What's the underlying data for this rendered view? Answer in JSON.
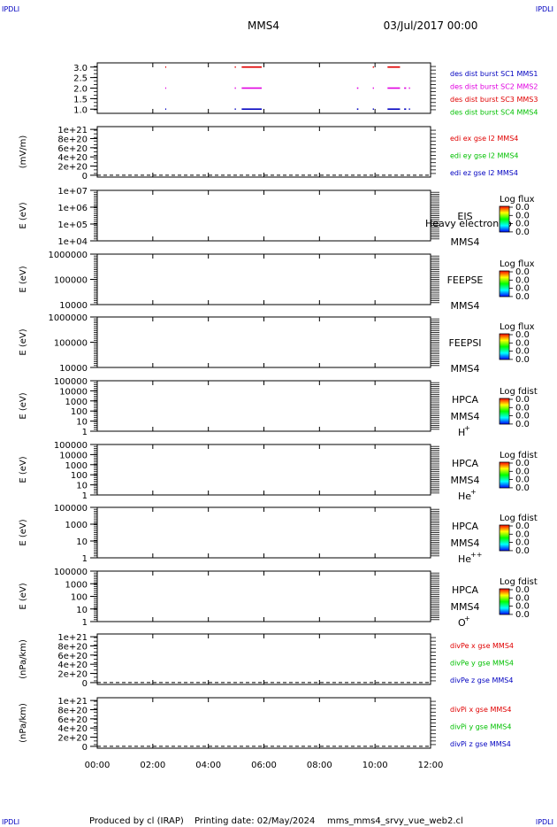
{
  "header": {
    "corner_tl": "IPDLI",
    "corner_tr": "IPDLI",
    "corner_bl": "IPDLI",
    "corner_br": "IPDLI",
    "title": "MMS4",
    "date": "03/Jul/2017 00:00"
  },
  "footer": {
    "produced": "Produced by cl (IRAP)",
    "printed": "Printing date: 02/May/2024",
    "file": "mms_mms4_srvy_vue_web2.cl"
  },
  "colors": {
    "red": "#e00000",
    "magenta": "#e000e0",
    "blue": "#0000c0",
    "green": "#00c000"
  },
  "chart_data": {
    "type": "line",
    "x_axis": {
      "range": [
        "00:00",
        "12:00"
      ],
      "tick_labels": [
        "00:00",
        "02:00",
        "04:00",
        "06:00",
        "08:00",
        "10:00",
        "12:00"
      ]
    },
    "panels": [
      {
        "id": "burst",
        "ylabel": "",
        "tick_labels": [
          "3.0",
          "2.5",
          "2.0",
          "1.5",
          "1.0"
        ],
        "ylim": [
          0.8,
          3.2
        ],
        "legend": [
          {
            "text": "des dist burst SC1 MMS1",
            "color": "#0000c0"
          },
          {
            "text": "des dist burst SC2 MMS2",
            "color": "#e000e0"
          },
          {
            "text": "des dist burst SC3 MMS3",
            "color": "#e00000"
          },
          {
            "text": "des dist burst SC4 MMS4",
            "color": "#00c000"
          }
        ],
        "series": [
          {
            "level": 3,
            "color": "#e00000",
            "intervals": [
              [
                2.45,
                2.47
              ],
              [
                4.95,
                4.99
              ],
              [
                5.2,
                5.92
              ],
              [
                9.92,
                9.96
              ],
              [
                10.45,
                10.9
              ]
            ]
          },
          {
            "level": 2,
            "color": "#e000e0",
            "intervals": [
              [
                2.45,
                2.47
              ],
              [
                4.95,
                4.99
              ],
              [
                5.2,
                5.92
              ],
              [
                9.35,
                9.4
              ],
              [
                9.92,
                9.96
              ],
              [
                10.45,
                10.9
              ],
              [
                11.05,
                11.12
              ],
              [
                11.22,
                11.26
              ]
            ]
          },
          {
            "level": 1,
            "color": "#0000c0",
            "intervals": [
              [
                2.45,
                2.47
              ],
              [
                4.95,
                4.99
              ],
              [
                5.2,
                5.92
              ],
              [
                9.35,
                9.4
              ],
              [
                9.92,
                9.96
              ],
              [
                10.45,
                10.9
              ],
              [
                11.05,
                11.12
              ],
              [
                11.22,
                11.26
              ]
            ]
          }
        ]
      },
      {
        "id": "edi",
        "ylabel": "(mV/m)",
        "tick_labels": [
          "1e+21",
          "8e+20",
          "6e+20",
          "4e+20",
          "2e+20",
          "0"
        ],
        "ylim": [
          -4e+19,
          1.06e+21
        ],
        "zero_line": true,
        "legend": [
          {
            "text": "edi ex gse l2 MMS4",
            "color": "#e00000"
          },
          {
            "text": "edi ey gse l2 MMS4",
            "color": "#00c000"
          },
          {
            "text": "edi ez gse l2 MMS4",
            "color": "#0000c0"
          }
        ]
      },
      {
        "id": "eis",
        "ylabel": "E (eV)",
        "tick_labels": [
          "1e+07",
          "1e+06",
          "1e+05",
          "1e+04"
        ],
        "log": true,
        "instrument": [
          "EIS",
          "MMS4"
        ],
        "overlay": "Heavy electron to",
        "colorbar": {
          "title": "Log flux",
          "ticks": [
            "0.0",
            "0.0",
            "0.0",
            "0.0"
          ]
        }
      },
      {
        "id": "feepse",
        "ylabel": "E (eV)",
        "tick_labels": [
          "1000000",
          "100000",
          "10000"
        ],
        "log": true,
        "instrument": [
          "FEEPSE",
          "MMS4"
        ],
        "colorbar": {
          "title": "Log flux",
          "ticks": [
            "0.0",
            "0.0",
            "0.0",
            "0.0"
          ]
        }
      },
      {
        "id": "feepsi",
        "ylabel": "E (eV)",
        "tick_labels": [
          "1000000",
          "100000",
          "10000"
        ],
        "log": true,
        "instrument": [
          "FEEPSI",
          "MMS4"
        ],
        "colorbar": {
          "title": "Log flux",
          "ticks": [
            "0.0",
            "0.0",
            "0.0",
            "0.0"
          ]
        }
      },
      {
        "id": "hpca_h",
        "ylabel": "E (eV)",
        "tick_labels": [
          "100000",
          "10000",
          "1000",
          "100",
          "10",
          "1"
        ],
        "log": true,
        "instrument": [
          "HPCA",
          "MMS4"
        ],
        "species": {
          "base": "H",
          "sup": "+"
        },
        "colorbar": {
          "title": "Log fdist",
          "ticks": [
            "0.0",
            "0.0",
            "0.0",
            "0.0"
          ]
        }
      },
      {
        "id": "hpca_he",
        "ylabel": "E (eV)",
        "tick_labels": [
          "100000",
          "10000",
          "1000",
          "100",
          "10",
          "1"
        ],
        "log": true,
        "instrument": [
          "HPCA",
          "MMS4"
        ],
        "species": {
          "base": "He",
          "sup": "+"
        },
        "colorbar": {
          "title": "Log fdist",
          "ticks": [
            "0.0",
            "0.0",
            "0.0",
            "0.0"
          ]
        }
      },
      {
        "id": "hpca_he2",
        "ylabel": "E (eV)",
        "tick_labels": [
          "100000",
          "1000",
          "10",
          "1"
        ],
        "log": true,
        "instrument": [
          "HPCA",
          "MMS4"
        ],
        "species": {
          "base": "He",
          "sup": "++"
        },
        "colorbar": {
          "title": "Log fdist",
          "ticks": [
            "0.0",
            "0.0",
            "0.0",
            "0.0"
          ]
        }
      },
      {
        "id": "hpca_o",
        "ylabel": "E (eV)",
        "tick_labels": [
          "100000",
          "1000",
          "100",
          "10",
          "1"
        ],
        "log": true,
        "instrument": [
          "HPCA",
          "MMS4"
        ],
        "species": {
          "base": "O",
          "sup": "+"
        },
        "colorbar": {
          "title": "Log fdist",
          "ticks": [
            "0.0",
            "0.0",
            "0.0",
            "0.0"
          ]
        }
      },
      {
        "id": "divpe",
        "ylabel": "(nPa/km)",
        "tick_labels": [
          "1e+21",
          "8e+20",
          "6e+20",
          "4e+20",
          "2e+20",
          "0"
        ],
        "ylim": [
          -4e+19,
          1.06e+21
        ],
        "zero_line": true,
        "legend": [
          {
            "text": "divPe x gse MMS4",
            "color": "#e00000"
          },
          {
            "text": "divPe y gse MMS4",
            "color": "#00c000"
          },
          {
            "text": "divPe z gse MMS4",
            "color": "#0000c0"
          }
        ]
      },
      {
        "id": "divpi",
        "ylabel": "(nPa/km)",
        "tick_labels": [
          "1e+21",
          "8e+20",
          "6e+20",
          "4e+20",
          "2e+20",
          "0"
        ],
        "ylim": [
          -4e+19,
          1.06e+21
        ],
        "zero_line": true,
        "legend": [
          {
            "text": "divPi x gse MMS4",
            "color": "#e00000"
          },
          {
            "text": "divPi y gse MMS4",
            "color": "#00c000"
          },
          {
            "text": "divPi z gse MMS4",
            "color": "#0000c0"
          }
        ]
      }
    ]
  }
}
